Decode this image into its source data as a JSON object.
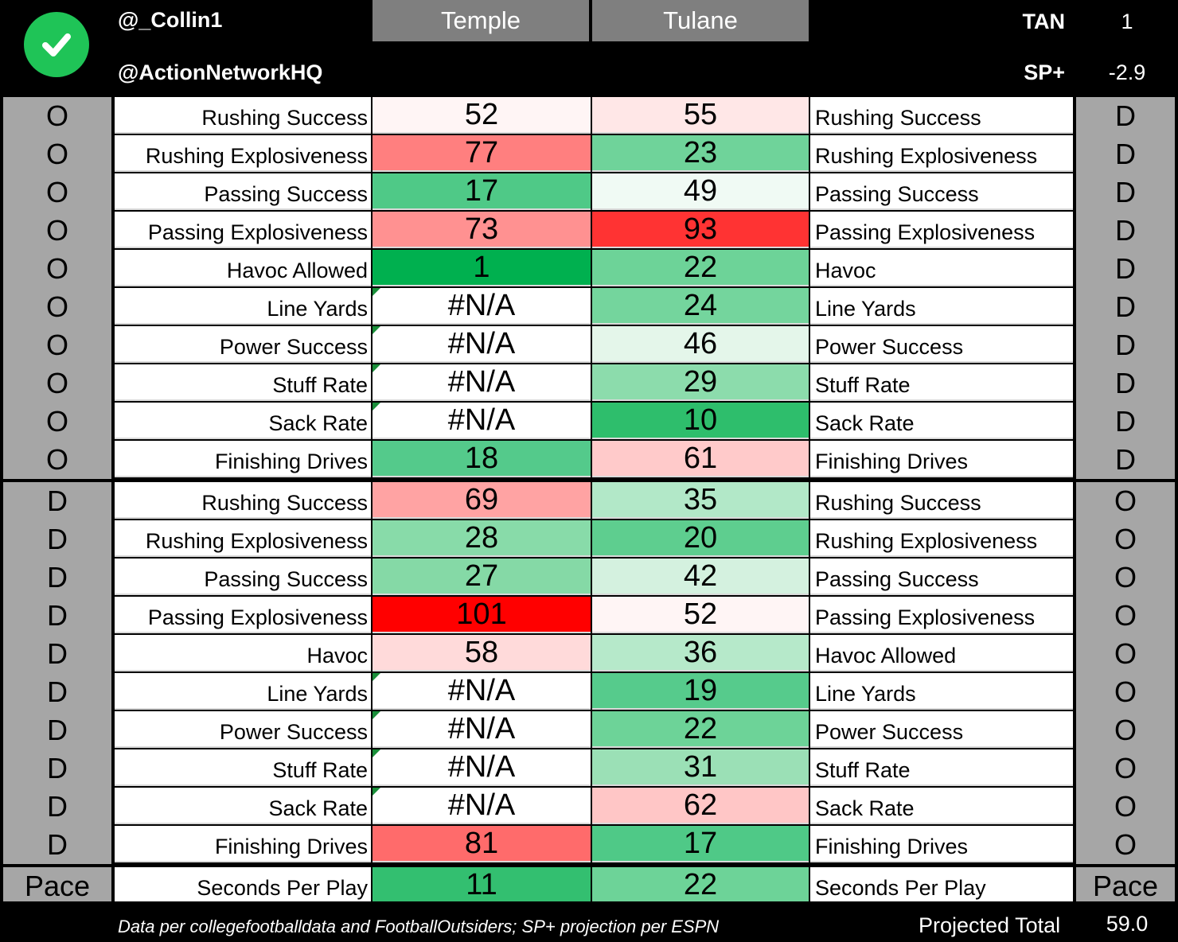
{
  "header": {
    "handle1": "@_Collin1",
    "handle2": "@ActionNetworkHQ",
    "team_left": "Temple",
    "team_right": "Tulane",
    "stat1_label": "TAN",
    "stat1_value": "1",
    "stat2_label": "SP+",
    "stat2_value": "-2.9",
    "check_icon": "check-circle-icon",
    "check_color": "#1fc457"
  },
  "rows": [
    {
      "left_side": "O",
      "left_label": "Rushing Success",
      "left_value": "52",
      "left_color": "#fff5f5",
      "right_value": "55",
      "right_color": "#ffe7e7",
      "right_label": "Rushing Success",
      "right_side": "D",
      "flag": false
    },
    {
      "left_side": "O",
      "left_label": "Rushing Explosiveness",
      "left_value": "77",
      "left_color": "#ff7f7f",
      "right_value": "23",
      "right_color": "#6fd39a",
      "right_label": "Rushing Explosiveness",
      "right_side": "D",
      "flag": false
    },
    {
      "left_side": "O",
      "left_label": "Passing Success",
      "left_value": "17",
      "left_color": "#4fc987",
      "right_value": "49",
      "right_color": "#f0faf4",
      "right_label": "Passing Success",
      "right_side": "D",
      "flag": false
    },
    {
      "left_side": "O",
      "left_label": "Passing Explosiveness",
      "left_value": "73",
      "left_color": "#ff9191",
      "right_value": "93",
      "right_color": "#ff3333",
      "right_label": "Passing Explosiveness",
      "right_side": "D",
      "flag": false
    },
    {
      "left_side": "O",
      "left_label": "Havoc Allowed",
      "left_value": "1",
      "left_color": "#00b04f",
      "right_value": "22",
      "right_color": "#6dd398",
      "right_label": "Havoc",
      "right_side": "D",
      "flag": false
    },
    {
      "left_side": "O",
      "left_label": "Line Yards",
      "left_value": "#N/A",
      "left_color": "#ffffff",
      "right_value": "24",
      "right_color": "#74d59d",
      "right_label": "Line Yards",
      "right_side": "D",
      "flag": true
    },
    {
      "left_side": "O",
      "left_label": "Power Success",
      "left_value": "#N/A",
      "left_color": "#ffffff",
      "right_value": "46",
      "right_color": "#e4f6ea",
      "right_label": "Power Success",
      "right_side": "D",
      "flag": true
    },
    {
      "left_side": "O",
      "left_label": "Stuff Rate",
      "left_value": "#N/A",
      "left_color": "#ffffff",
      "right_value": "29",
      "right_color": "#8cdcac",
      "right_label": "Stuff Rate",
      "right_side": "D",
      "flag": true
    },
    {
      "left_side": "O",
      "left_label": "Sack Rate",
      "left_value": "#N/A",
      "left_color": "#ffffff",
      "right_value": "10",
      "right_color": "#2ebe6c",
      "right_label": "Sack Rate",
      "right_side": "D",
      "flag": true
    },
    {
      "left_side": "O",
      "left_label": "Finishing Drives",
      "left_value": "18",
      "left_color": "#54ca8b",
      "right_value": "61",
      "right_color": "#ffcaca",
      "right_label": "Finishing Drives",
      "right_side": "D",
      "flag": false
    },
    {
      "left_side": "D",
      "left_label": "Rushing Success",
      "left_value": "69",
      "left_color": "#ffa3a3",
      "right_value": "35",
      "right_color": "#b2e8c8",
      "right_label": "Rushing Success",
      "right_side": "O",
      "flag": false
    },
    {
      "left_side": "D",
      "left_label": "Rushing Explosiveness",
      "left_value": "28",
      "left_color": "#88dba9",
      "right_value": "20",
      "right_color": "#5ece8f",
      "right_label": "Rushing Explosiveness",
      "right_side": "O",
      "flag": false
    },
    {
      "left_side": "D",
      "left_label": "Passing Success",
      "left_value": "27",
      "left_color": "#85d9a6",
      "right_value": "42",
      "right_color": "#d4f1df",
      "right_label": "Passing Success",
      "right_side": "O",
      "flag": false
    },
    {
      "left_side": "D",
      "left_label": "Passing Explosiveness",
      "left_value": "101",
      "left_color": "#ff0000",
      "right_value": "52",
      "right_color": "#fff5f5",
      "right_label": "Passing Explosiveness",
      "right_side": "O",
      "flag": false
    },
    {
      "left_side": "D",
      "left_label": "Havoc",
      "left_value": "58",
      "left_color": "#ffdada",
      "right_value": "36",
      "right_color": "#b6e9ca",
      "right_label": "Havoc Allowed",
      "right_side": "O",
      "flag": false
    },
    {
      "left_side": "D",
      "left_label": "Line Yards",
      "left_value": "#N/A",
      "left_color": "#ffffff",
      "right_value": "19",
      "right_color": "#56cb8c",
      "right_label": "Line Yards",
      "right_side": "O",
      "flag": true
    },
    {
      "left_side": "D",
      "left_label": "Power Success",
      "left_value": "#N/A",
      "left_color": "#ffffff",
      "right_value": "22",
      "right_color": "#6dd398",
      "right_label": "Power Success",
      "right_side": "O",
      "flag": true
    },
    {
      "left_side": "D",
      "left_label": "Stuff Rate",
      "left_value": "#N/A",
      "left_color": "#ffffff",
      "right_value": "31",
      "right_color": "#9be0b6",
      "right_label": "Stuff Rate",
      "right_side": "O",
      "flag": true
    },
    {
      "left_side": "D",
      "left_label": "Sack Rate",
      "left_value": "#N/A",
      "left_color": "#ffffff",
      "right_value": "62",
      "right_color": "#ffc6c6",
      "right_label": "Sack Rate",
      "right_side": "O",
      "flag": true
    },
    {
      "left_side": "D",
      "left_label": "Finishing Drives",
      "left_value": "81",
      "left_color": "#ff6b6b",
      "right_value": "17",
      "right_color": "#4fc987",
      "right_label": "Finishing Drives",
      "right_side": "O",
      "flag": false
    }
  ],
  "pace": {
    "left_side": "Pace",
    "left_label": "Seconds Per Play",
    "left_value": "11",
    "left_color": "#33bf70",
    "right_value": "22",
    "right_color": "#6dd398",
    "right_label": "Seconds Per Play",
    "right_side": "Pace"
  },
  "footer": {
    "note": "Data per collegefootballdata and FootballOutsiders; SP+ projection per ESPN",
    "projected_label": "Projected Total",
    "projected_value": "59.0"
  }
}
